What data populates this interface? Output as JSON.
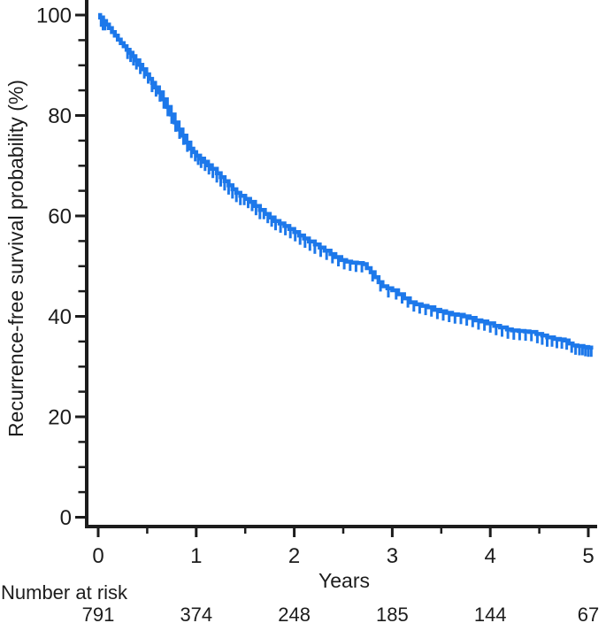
{
  "chart_data": {
    "type": "line",
    "chart_kind": "kaplan_meier_step_curve",
    "title": "",
    "xlabel": "Years",
    "ylabel": "Recurrence-free survival probability (%)",
    "xlim": [
      0,
      5.1
    ],
    "ylim": [
      0,
      100
    ],
    "xticks": [
      0,
      1,
      2,
      3,
      4,
      5
    ],
    "xticks_minor": [
      0.5,
      1.5,
      2.5,
      3.5,
      4.5
    ],
    "yticks": [
      0,
      20,
      40,
      60,
      80,
      100
    ],
    "yticks_minor": [
      5,
      10,
      15,
      25,
      30,
      35,
      45,
      50,
      55,
      65,
      70,
      75,
      85,
      90,
      95
    ],
    "grid": false,
    "legend": "none",
    "colors": {
      "curve": "#1d78ea",
      "axis": "#1c1c1c",
      "text": "#1c1c1c",
      "background": "#ffffff"
    },
    "series": [
      {
        "name": "recurrence-free-survival",
        "step_points_year_pct": [
          [
            0.0,
            100
          ],
          [
            0.02,
            99.5
          ],
          [
            0.05,
            98.8
          ],
          [
            0.08,
            98.1
          ],
          [
            0.11,
            97.4
          ],
          [
            0.14,
            96.6
          ],
          [
            0.17,
            95.9
          ],
          [
            0.2,
            95.1
          ],
          [
            0.23,
            94.4
          ],
          [
            0.26,
            93.8
          ],
          [
            0.29,
            93.1
          ],
          [
            0.32,
            92.5
          ],
          [
            0.35,
            91.8
          ],
          [
            0.38,
            91.0
          ],
          [
            0.42,
            90.1
          ],
          [
            0.45,
            89.2
          ],
          [
            0.49,
            88.2
          ],
          [
            0.52,
            87.3
          ],
          [
            0.55,
            86.5
          ],
          [
            0.58,
            85.6
          ],
          [
            0.62,
            84.6
          ],
          [
            0.66,
            83.2
          ],
          [
            0.7,
            81.7
          ],
          [
            0.74,
            80.2
          ],
          [
            0.78,
            78.6
          ],
          [
            0.82,
            77.2
          ],
          [
            0.86,
            76.0
          ],
          [
            0.9,
            74.6
          ],
          [
            0.94,
            73.4
          ],
          [
            0.97,
            72.7
          ],
          [
            1.0,
            72.0
          ],
          [
            1.04,
            71.4
          ],
          [
            1.08,
            70.8
          ],
          [
            1.12,
            70.1
          ],
          [
            1.16,
            69.4
          ],
          [
            1.21,
            68.5
          ],
          [
            1.25,
            67.7
          ],
          [
            1.29,
            66.9
          ],
          [
            1.33,
            66.1
          ],
          [
            1.37,
            65.3
          ],
          [
            1.41,
            64.6
          ],
          [
            1.45,
            64.0
          ],
          [
            1.5,
            63.4
          ],
          [
            1.55,
            62.8
          ],
          [
            1.6,
            62.0
          ],
          [
            1.65,
            61.2
          ],
          [
            1.7,
            60.4
          ],
          [
            1.75,
            59.7
          ],
          [
            1.8,
            59.0
          ],
          [
            1.85,
            58.5
          ],
          [
            1.9,
            58.0
          ],
          [
            1.95,
            57.4
          ],
          [
            2.0,
            56.8
          ],
          [
            2.05,
            56.1
          ],
          [
            2.1,
            55.5
          ],
          [
            2.15,
            54.9
          ],
          [
            2.21,
            54.3
          ],
          [
            2.26,
            53.7
          ],
          [
            2.31,
            53.1
          ],
          [
            2.37,
            52.4
          ],
          [
            2.42,
            51.8
          ],
          [
            2.48,
            51.2
          ],
          [
            2.53,
            50.9
          ],
          [
            2.58,
            50.7
          ],
          [
            2.64,
            50.6
          ],
          [
            2.7,
            50.4
          ],
          [
            2.74,
            49.6
          ],
          [
            2.78,
            48.8
          ],
          [
            2.82,
            47.8
          ],
          [
            2.86,
            46.8
          ],
          [
            2.9,
            46.0
          ],
          [
            2.95,
            45.6
          ],
          [
            3.0,
            45.2
          ],
          [
            3.06,
            44.4
          ],
          [
            3.12,
            43.6
          ],
          [
            3.18,
            42.8
          ],
          [
            3.24,
            42.4
          ],
          [
            3.3,
            42.1
          ],
          [
            3.36,
            41.8
          ],
          [
            3.43,
            41.3
          ],
          [
            3.49,
            41.0
          ],
          [
            3.55,
            40.7
          ],
          [
            3.61,
            40.4
          ],
          [
            3.67,
            40.3
          ],
          [
            3.73,
            40.0
          ],
          [
            3.79,
            39.7
          ],
          [
            3.85,
            39.2
          ],
          [
            3.91,
            39.0
          ],
          [
            3.97,
            38.6
          ],
          [
            4.04,
            38.1
          ],
          [
            4.1,
            37.8
          ],
          [
            4.17,
            37.4
          ],
          [
            4.22,
            37.2
          ],
          [
            4.29,
            37.1
          ],
          [
            4.35,
            37.0
          ],
          [
            4.4,
            36.9
          ],
          [
            4.47,
            36.5
          ],
          [
            4.53,
            36.2
          ],
          [
            4.58,
            35.8
          ],
          [
            4.65,
            35.5
          ],
          [
            4.71,
            35.4
          ],
          [
            4.76,
            35.2
          ],
          [
            4.8,
            34.6
          ],
          [
            4.84,
            34.2
          ],
          [
            4.89,
            34.1
          ],
          [
            4.95,
            33.9
          ],
          [
            5.0,
            33.8
          ],
          [
            5.05,
            33.8
          ]
        ],
        "censor_marks_year": [
          0.03,
          0.05,
          0.07,
          0.3,
          0.33,
          0.36,
          0.39,
          0.43,
          0.47,
          0.51,
          0.55,
          0.59,
          0.63,
          0.67,
          0.71,
          0.75,
          0.79,
          0.83,
          0.87,
          0.91,
          0.95,
          0.99,
          1.02,
          1.05,
          1.09,
          1.13,
          1.17,
          1.21,
          1.25,
          1.29,
          1.33,
          1.37,
          1.41,
          1.45,
          1.49,
          1.53,
          1.57,
          1.61,
          1.65,
          1.69,
          1.73,
          1.77,
          1.81,
          1.86,
          1.91,
          1.96,
          2.01,
          2.06,
          2.11,
          2.16,
          2.21,
          2.27,
          2.33,
          2.39,
          2.45,
          2.51,
          2.57,
          2.63,
          2.69,
          2.8,
          2.88,
          2.96,
          3.04,
          3.1,
          3.16,
          3.22,
          3.28,
          3.34,
          3.4,
          3.46,
          3.52,
          3.58,
          3.64,
          3.7,
          3.76,
          3.82,
          3.88,
          3.94,
          4.0,
          4.06,
          4.12,
          4.18,
          4.24,
          4.3,
          4.36,
          4.42,
          4.48,
          4.53,
          4.58,
          4.63,
          4.68,
          4.73,
          4.78,
          4.83,
          4.87,
          4.91,
          4.94,
          4.97,
          5.0,
          5.03
        ]
      }
    ],
    "number_at_risk": {
      "label": "Number at risk",
      "times_years": [
        0,
        1,
        2,
        3,
        4,
        5
      ],
      "counts": [
        791,
        374,
        248,
        185,
        144,
        67
      ]
    }
  }
}
